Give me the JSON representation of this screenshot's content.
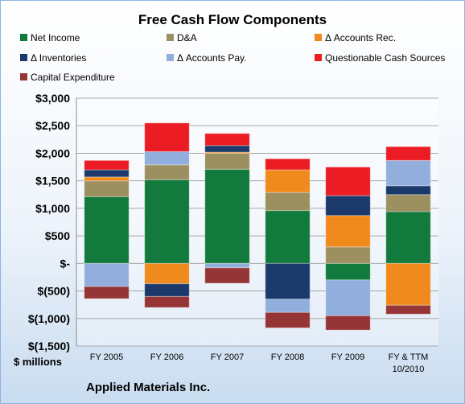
{
  "chart_data": {
    "type": "bar",
    "stacked": true,
    "title": "Free Cash Flow Components",
    "categories": [
      "FY 2005",
      "FY 2006",
      "FY 2007",
      "FY 2008",
      "FY 2009",
      "FY & TTM 10/2010"
    ],
    "y_tick_labels": [
      "$3,000",
      "$2,500",
      "$2,000",
      "$1,500",
      "$1,000",
      "$500",
      "$-",
      "$(500)",
      "$(1,000)",
      "$(1,500)"
    ],
    "ylim": [
      -1500,
      3000
    ],
    "unit_label": "$ millions",
    "company": "Applied Materials Inc.",
    "grid": true,
    "legend_position": "top",
    "series": [
      {
        "name": "Net Income",
        "color": "#117a3c",
        "values": [
          1210,
          1520,
          1710,
          960,
          -300,
          940
        ]
      },
      {
        "name": "D&A",
        "color": "#9c9060",
        "values": [
          290,
          270,
          290,
          330,
          300,
          310
        ]
      },
      {
        "name": "Δ Accounts Rec.",
        "color": "#f08a1c",
        "values": [
          70,
          -370,
          20,
          410,
          570,
          -760
        ]
      },
      {
        "name": "Δ Inventories",
        "color": "#1b3a6b",
        "values": [
          130,
          -230,
          120,
          -650,
          360,
          160
        ]
      },
      {
        "name": "Δ Accounts Pay.",
        "color": "#92aedc",
        "values": [
          -420,
          240,
          -80,
          -240,
          -650,
          460
        ]
      },
      {
        "name": "Questionable Cash Sources",
        "color": "#ec1c24",
        "values": [
          170,
          520,
          220,
          200,
          520,
          250
        ]
      },
      {
        "name": "Capital Expenditure",
        "color": "#953535",
        "values": [
          -220,
          -200,
          -280,
          -280,
          -260,
          -160
        ]
      }
    ]
  }
}
